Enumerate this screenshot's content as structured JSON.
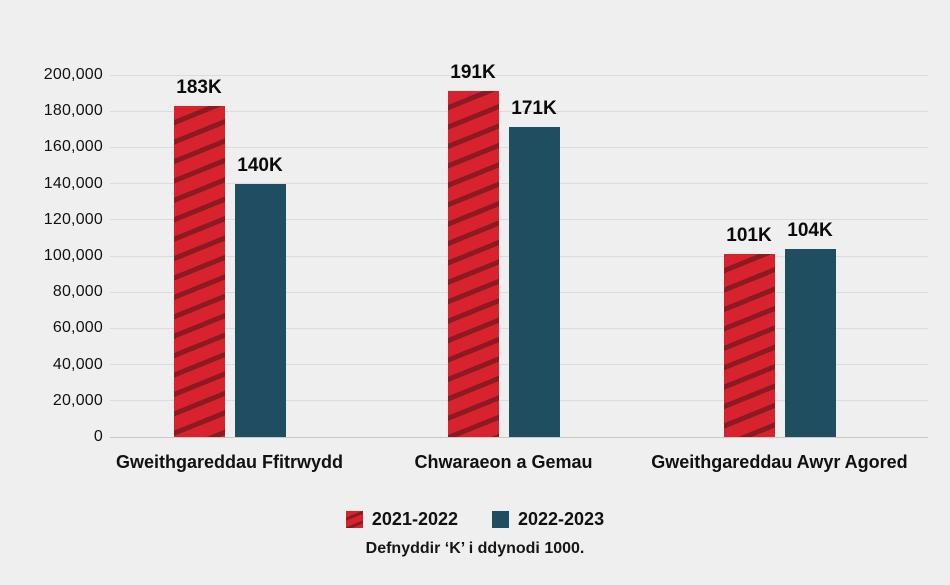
{
  "chart_data": {
    "type": "bar",
    "categories": [
      "Gweithgareddau Ffitrwydd",
      "Chwaraeon a Gemau",
      "Gweithgareddau Awyr Agored"
    ],
    "series": [
      {
        "name": "2021-2022",
        "values": [
          183000,
          191000,
          101000
        ],
        "value_labels": [
          "183K",
          "191K",
          "101K"
        ],
        "color": "#d8232f",
        "stripe_color": "#8c1a23",
        "pattern": "diagonal-stripes"
      },
      {
        "name": "2022-2023",
        "values": [
          140000,
          171000,
          104000
        ],
        "value_labels": [
          "140K",
          "171K",
          "104K"
        ],
        "color": "#1f4e61",
        "pattern": "solid"
      }
    ],
    "ylim": [
      0,
      200000
    ],
    "ytick_step": 20000,
    "ytick_labels": [
      "0",
      "20,000",
      "40,000",
      "60,000",
      "80,000",
      "100,000",
      "120,000",
      "140,000",
      "160,000",
      "180,000",
      "200,000"
    ],
    "xlabel": "",
    "ylabel": "",
    "title": "",
    "grid": true,
    "legend_position": "bottom",
    "footnote": "Defnyddir ‘K’ i ddynodi 1000.",
    "background_color": "#f0eff0",
    "gridline_color": "#dcdbdc",
    "text_color": "#111111"
  }
}
